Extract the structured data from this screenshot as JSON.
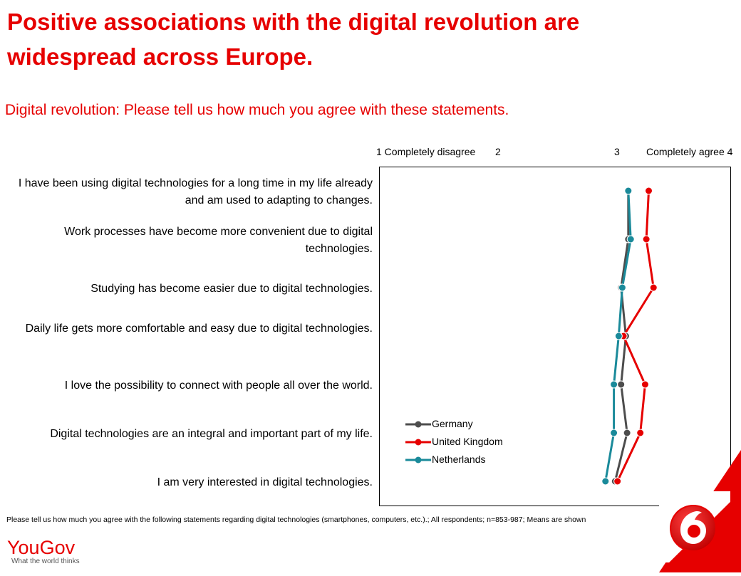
{
  "header": {
    "title": "Positive associations with the digital revolution are widespread across Europe.",
    "subtitle": "Digital revolution: Please tell us how much you agree with these statements."
  },
  "scale": {
    "label_1": "1 Completely disagree",
    "label_2": "2",
    "label_3": "3",
    "label_4": "Completely agree  4"
  },
  "footnote": "Please tell us how much you agree with the following statements regarding digital technologies (smartphones, computers, etc.).; All respondents; n=853-987; Means are shown",
  "brand": {
    "name": "YouGov",
    "tagline": "What the world thinks"
  },
  "colors": {
    "accent": "#e60000",
    "germany": "#4d4d4d",
    "uk": "#e60000",
    "netherlands": "#1a8a9a"
  },
  "chart_data": {
    "type": "line",
    "orientation": "horizontal",
    "categories": [
      "I have been using digital technologies for a long time in my life already and am used to adapting to changes.",
      "Work processes have become more convenient due to digital technologies.",
      "Studying has become easier due to digital technologies.",
      "Daily life gets more comfortable and easy due to digital technologies.",
      "I love the possibility to connect with people all over the world.",
      "Digital technologies are an integral and important part of my life.",
      "I am very interested in digital technologies."
    ],
    "xlim": [
      1,
      4
    ],
    "legend_position": "bottom-left",
    "series": [
      {
        "name": "Germany",
        "color": "#4d4d4d",
        "values": [
          3.08,
          3.08,
          3.02,
          3.06,
          3.02,
          3.07,
          2.97
        ]
      },
      {
        "name": "United Kingdom",
        "color": "#e60000",
        "values": [
          3.25,
          3.23,
          3.29,
          3.04,
          3.22,
          3.18,
          2.99
        ]
      },
      {
        "name": "Netherlands",
        "color": "#1a8a9a",
        "values": [
          3.08,
          3.1,
          3.03,
          3.0,
          2.96,
          2.96,
          2.89
        ]
      }
    ]
  }
}
